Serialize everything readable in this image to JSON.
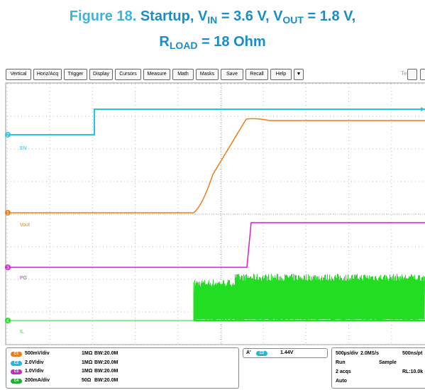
{
  "header": {
    "figure": "Figure 18.",
    "line1": [
      "Startup, V",
      "IN",
      " = 3.6 V, V",
      "OUT",
      " = 1.8 V,"
    ],
    "line2": [
      "R",
      "LOAD",
      " = 18 Ohm"
    ]
  },
  "toolbar": {
    "buttons": [
      "Vertical",
      "Horiz/Acq",
      "Trigger",
      "Display",
      "Cursors",
      "Measure",
      "Math",
      "Masks",
      "Save",
      "Recall",
      "Help",
      "▼"
    ],
    "brand": "Tek"
  },
  "screen": {
    "markers": [
      "2",
      "1",
      "3",
      "4"
    ],
    "labels": [
      "EN",
      "Vout",
      "PG",
      "IL"
    ]
  },
  "channels": [
    {
      "id": "C1",
      "scale": "500mV/div",
      "impedance": "1MΩ",
      "bandwidth": "BW:20.0M"
    },
    {
      "id": "C2",
      "scale": "2.0V/div",
      "impedance": "1MΩ",
      "bandwidth": "BW:20.0M"
    },
    {
      "id": "C3",
      "scale": "1.0V/div",
      "impedance": "1MΩ",
      "bandwidth": "BW:20.0M"
    },
    {
      "id": "C4",
      "scale": "200mA/div",
      "impedance": "50Ω",
      "bandwidth": "BW:20.0M"
    }
  ],
  "trigger": {
    "source": "A'",
    "channel": "C2",
    "level": "1.44V"
  },
  "timebase": {
    "scale": "500µs/div",
    "rate": "2.0MS/s",
    "resolution": "500ns/pt",
    "state": "Run",
    "mode": "Sample",
    "acqs": "2 acqs",
    "record": "RL:10.0k",
    "trigger_mode": "Auto"
  }
}
